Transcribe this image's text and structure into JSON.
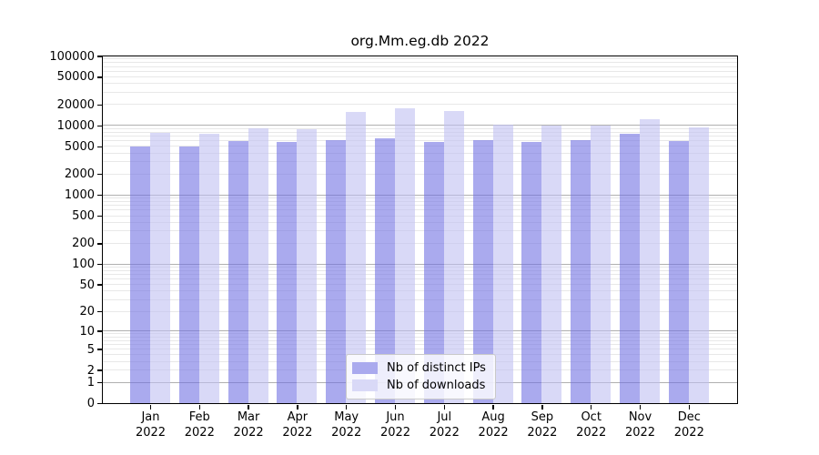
{
  "figure": {
    "background": "#ffffff"
  },
  "chart_data": {
    "type": "bar",
    "title": "org.Mm.eg.db 2022",
    "year": "2022",
    "categories": [
      "Jan",
      "Feb",
      "Mar",
      "Apr",
      "May",
      "Jun",
      "Jul",
      "Aug",
      "Sep",
      "Oct",
      "Nov",
      "Dec"
    ],
    "series": [
      {
        "name": "Nb of distinct IPs",
        "color": "#aaaaee",
        "bar_rgba": "rgba(113,113,227,0.6)",
        "values": [
          4900,
          5000,
          6000,
          5800,
          6200,
          6600,
          5800,
          6100,
          5800,
          6200,
          7600,
          5900
        ]
      },
      {
        "name": "Nb of downloads",
        "color": "#d9d9f7",
        "bar_rgba": "rgba(192,192,242,0.6)",
        "values": [
          7700,
          7500,
          9100,
          8800,
          15600,
          17700,
          15900,
          10300,
          9800,
          10000,
          12200,
          9400
        ]
      }
    ],
    "xlabel": "",
    "ylabel": "",
    "yscale": "log10(value+1)",
    "ylim": [
      0,
      100000
    ],
    "yticks": [
      100000,
      50000,
      20000,
      10000,
      5000,
      2000,
      1000,
      500,
      200,
      100,
      50,
      20,
      10,
      5,
      2,
      1,
      0
    ],
    "grid": {
      "enabled": true,
      "major_color": "#b0b0b0",
      "minor_color": "#e8e8e8",
      "major_at": "powers of 10",
      "minor_at": "2-9 multiples of powers of 10"
    },
    "legend": {
      "position": "bottom-center",
      "entries": [
        "Nb of distinct IPs",
        "Nb of downloads"
      ]
    },
    "axis_color": "#000000"
  }
}
